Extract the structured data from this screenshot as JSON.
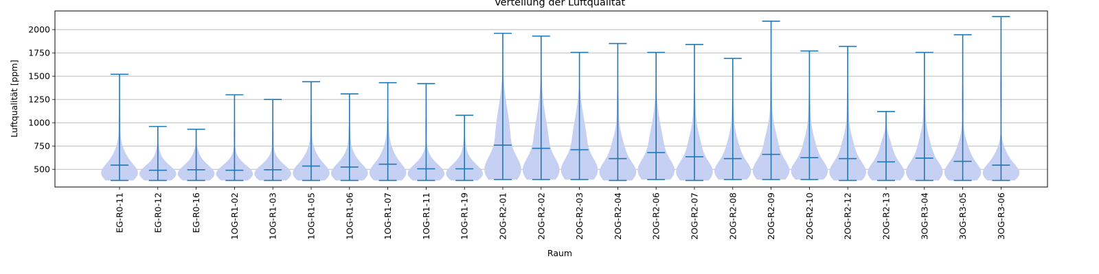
{
  "chart_data": {
    "type": "violin",
    "title": "Verteilung der Luftqualität",
    "xlabel": "Raum",
    "ylabel": "Luftqualität [ppm]",
    "ylim": [
      310,
      2200
    ],
    "yticks": [
      500,
      750,
      1000,
      1250,
      1500,
      1750,
      2000
    ],
    "grid": "horizontal",
    "violin_color": "#c6d0f2",
    "line_color": "#1f77b4",
    "categories": [
      "EG-R0-11",
      "EG-R0-12",
      "EG-R0-16",
      "1OG-R1-02",
      "1OG-R1-03",
      "1OG-R1-05",
      "1OG-R1-06",
      "1OG-R1-07",
      "1OG-R1-11",
      "1OG-R1-19",
      "2OG-R2-01",
      "2OG-R2-02",
      "2OG-R2-03",
      "2OG-R2-04",
      "2OG-R2-06",
      "2OG-R2-07",
      "2OG-R2-08",
      "2OG-R2-09",
      "2OG-R2-10",
      "2OG-R2-12",
      "2OG-R2-13",
      "3OG-R3-04",
      "3OG-R3-05",
      "3OG-R3-06"
    ],
    "min": [
      380,
      380,
      380,
      380,
      380,
      380,
      380,
      380,
      380,
      380,
      390,
      390,
      390,
      380,
      390,
      380,
      390,
      390,
      390,
      380,
      380,
      380,
      380,
      380
    ],
    "max": [
      1520,
      960,
      930,
      1300,
      1250,
      1440,
      1310,
      1430,
      1420,
      1080,
      1960,
      1930,
      1755,
      1850,
      1755,
      1840,
      1690,
      2090,
      1770,
      1820,
      1120,
      1755,
      1945,
      2140
    ],
    "mean": [
      545,
      490,
      495,
      490,
      495,
      535,
      525,
      555,
      505,
      505,
      760,
      725,
      710,
      615,
      680,
      635,
      615,
      660,
      625,
      615,
      580,
      620,
      585,
      545
    ]
  }
}
